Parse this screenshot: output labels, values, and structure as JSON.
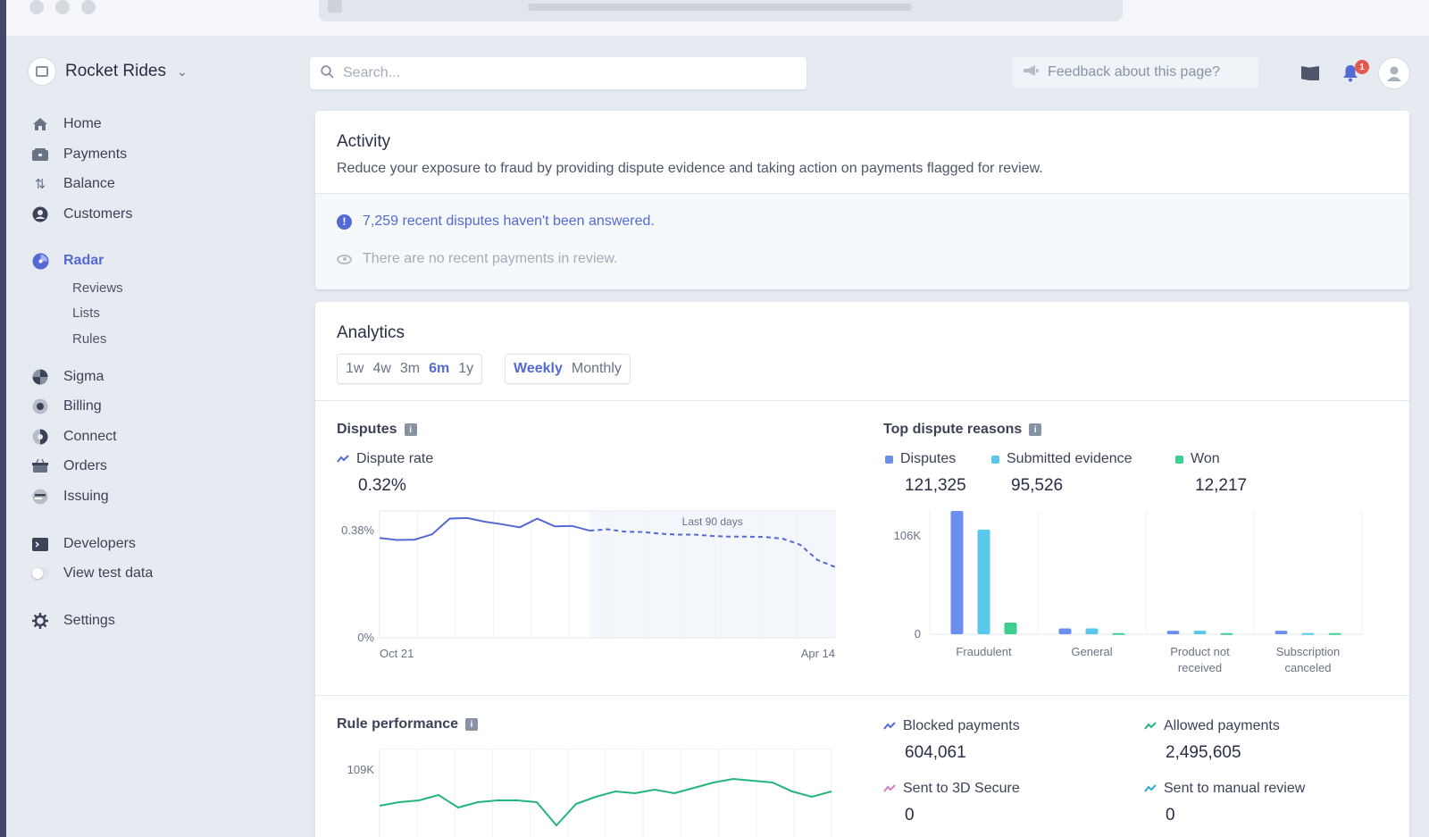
{
  "brand": {
    "name": "Rocket Rides"
  },
  "search": {
    "placeholder": "Search..."
  },
  "topbar": {
    "feedback_label": "Feedback about this page?",
    "notification_count": "1"
  },
  "nav": {
    "home": "Home",
    "payments": "Payments",
    "balance": "Balance",
    "customers": "Customers",
    "radar": "Radar",
    "radar_sub": [
      "Reviews",
      "Lists",
      "Rules"
    ],
    "sigma": "Sigma",
    "billing": "Billing",
    "connect": "Connect",
    "orders": "Orders",
    "issuing": "Issuing",
    "developers": "Developers",
    "view_test_data": "View test data",
    "settings": "Settings"
  },
  "activity": {
    "title": "Activity",
    "description": "Reduce your exposure to fraud by providing dispute evidence and taking action on payments flagged for review.",
    "alert_link": "7,259 recent disputes",
    "alert_rest": " haven't been answered.",
    "no_review": "There are no recent payments in review."
  },
  "analytics": {
    "title": "Analytics",
    "ranges": [
      "1w",
      "4w",
      "3m",
      "6m",
      "1y"
    ],
    "selected_range": "6m",
    "intervals": [
      "Weekly",
      "Monthly"
    ],
    "selected_interval": "Weekly",
    "disputes": {
      "title": "Disputes",
      "metric_label": "Dispute rate",
      "metric_value": "0.32%"
    },
    "top_reasons": {
      "title": "Top dispute reasons",
      "legend": [
        {
          "name": "Disputes",
          "value": "121,325",
          "color": "#6c8eef"
        },
        {
          "name": "Submitted evidence",
          "value": "95,526",
          "color": "#5ac8ea"
        },
        {
          "name": "Won",
          "value": "12,217",
          "color": "#3ecf8e"
        }
      ]
    },
    "rule_performance": {
      "title": "Rule performance",
      "metrics": [
        {
          "label": "Blocked payments",
          "value": "604,061",
          "color": "#5469d4"
        },
        {
          "label": "Allowed payments",
          "value": "2,495,605",
          "color": "#24b47e"
        },
        {
          "label": "Sent to 3D Secure",
          "value": "0",
          "color": "#d97ec6"
        },
        {
          "label": "Sent to manual review",
          "value": "0",
          "color": "#2fa8d9"
        }
      ]
    }
  },
  "chart_data": [
    {
      "type": "line",
      "title": "Disputes",
      "series": [
        {
          "name": "Dispute rate",
          "values": [
            0.299,
            0.293,
            0.294,
            0.31,
            0.357,
            0.359,
            0.348,
            0.34,
            0.331,
            0.357,
            0.334,
            0.335,
            0.321,
            0.325,
            0.318,
            0.317,
            0.312,
            0.309,
            0.309,
            0.305,
            0.303,
            0.303,
            0.302,
            0.297,
            0.279,
            0.233,
            0.212
          ]
        }
      ],
      "x_tick_labels": [
        "Oct 21",
        "Apr 14"
      ],
      "y_tick_labels": [
        "0.38%",
        "0%"
      ],
      "ylim": [
        0,
        0.38
      ],
      "annotation": "Last 90 days",
      "dashed_from_index": 12
    },
    {
      "type": "bar",
      "title": "Top dispute reasons",
      "categories": [
        "Fraudulent",
        "General",
        "Product not received",
        "Subscription canceled"
      ],
      "category_lines": [
        [
          "Fraudulent"
        ],
        [
          "General"
        ],
        [
          "Product not",
          "received"
        ],
        [
          "Subscription",
          "canceled"
        ]
      ],
      "series": [
        {
          "name": "Disputes",
          "values": [
            106000,
            5000,
            3000,
            3000
          ],
          "color": "#6c8eef"
        },
        {
          "name": "Submitted evidence",
          "values": [
            90000,
            5000,
            3000,
            1000
          ],
          "color": "#5ac8ea"
        },
        {
          "name": "Won",
          "values": [
            10000,
            1000,
            1000,
            1000
          ],
          "color": "#3ecf8e"
        }
      ],
      "y_tick_labels": [
        "106K",
        "0"
      ],
      "ylim": [
        0,
        106000
      ]
    },
    {
      "type": "line",
      "title": "Rule performance",
      "series": [
        {
          "name": "Blocked payments",
          "values": [
            97,
            99,
            100,
            103,
            96,
            99,
            100,
            100,
            99,
            86,
            98,
            102,
            105,
            104,
            106,
            104,
            107,
            110,
            112,
            111,
            110,
            105,
            102,
            105
          ]
        }
      ],
      "y_tick_labels": [
        "109K"
      ],
      "ylim": [
        0,
        109
      ]
    }
  ]
}
